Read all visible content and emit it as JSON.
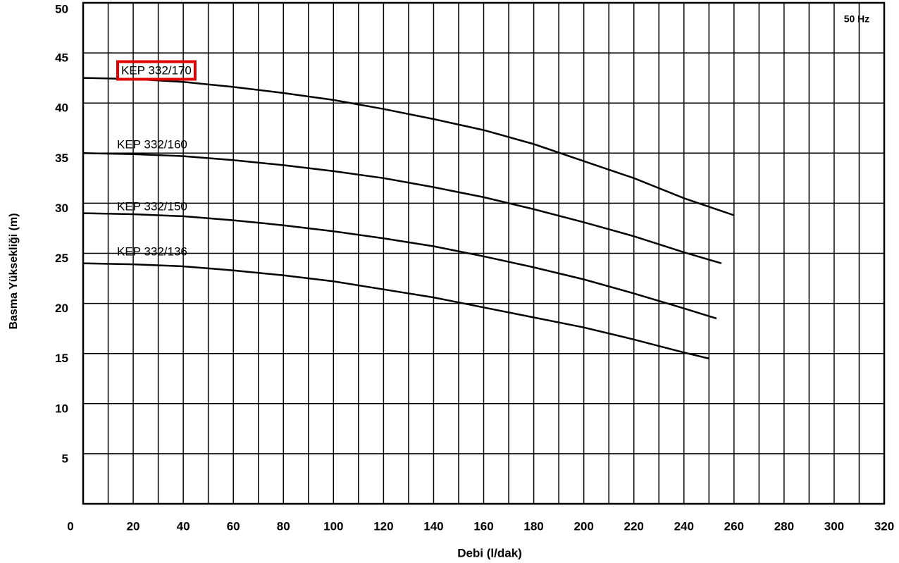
{
  "chart_data": {
    "type": "line",
    "x_label": "Debi (l/dak)",
    "y_label": "Basma Yüksekliği (m)",
    "annotation": "50 Hz",
    "highlighted_series": "KEP 332/170",
    "xlim": [
      0,
      320
    ],
    "xticks": [
      0,
      20,
      40,
      60,
      80,
      100,
      120,
      140,
      160,
      180,
      200,
      220,
      240,
      260,
      280,
      300,
      320
    ],
    "xminorticks": [
      10,
      30,
      50,
      70,
      90,
      110,
      130,
      150,
      170,
      190,
      210,
      230,
      250,
      270,
      290,
      310
    ],
    "ylim": [
      0,
      50
    ],
    "yticks": [
      5,
      10,
      15,
      20,
      25,
      30,
      35,
      40,
      45,
      50
    ],
    "grid": true,
    "series": [
      {
        "name": "KEP 332/170",
        "color": "#000000",
        "x": [
          0,
          20,
          40,
          60,
          80,
          100,
          120,
          140,
          160,
          180,
          200,
          220,
          240,
          260
        ],
        "values": [
          42.5,
          42.4,
          42.1,
          41.6,
          41.0,
          40.3,
          39.4,
          38.4,
          37.3,
          35.9,
          34.2,
          32.5,
          30.5,
          28.8
        ]
      },
      {
        "name": "KEP 332/160",
        "color": "#000000",
        "x": [
          0,
          20,
          40,
          60,
          80,
          100,
          120,
          140,
          160,
          180,
          200,
          220,
          240,
          255
        ],
        "values": [
          35.0,
          34.9,
          34.7,
          34.3,
          33.8,
          33.2,
          32.5,
          31.6,
          30.6,
          29.4,
          28.1,
          26.7,
          25.1,
          24.0
        ]
      },
      {
        "name": "KEP 332/150",
        "color": "#000000",
        "x": [
          0,
          20,
          40,
          60,
          80,
          100,
          120,
          140,
          160,
          180,
          200,
          220,
          240,
          253
        ],
        "values": [
          29.0,
          28.9,
          28.7,
          28.3,
          27.8,
          27.2,
          26.5,
          25.7,
          24.7,
          23.6,
          22.4,
          21.0,
          19.5,
          18.5
        ]
      },
      {
        "name": "KEP 332/136",
        "color": "#000000",
        "x": [
          0,
          20,
          40,
          60,
          80,
          100,
          120,
          140,
          160,
          180,
          200,
          220,
          240,
          250
        ],
        "values": [
          24.0,
          23.9,
          23.7,
          23.3,
          22.8,
          22.2,
          21.4,
          20.6,
          19.6,
          18.6,
          17.6,
          16.4,
          15.1,
          14.5
        ]
      }
    ]
  }
}
